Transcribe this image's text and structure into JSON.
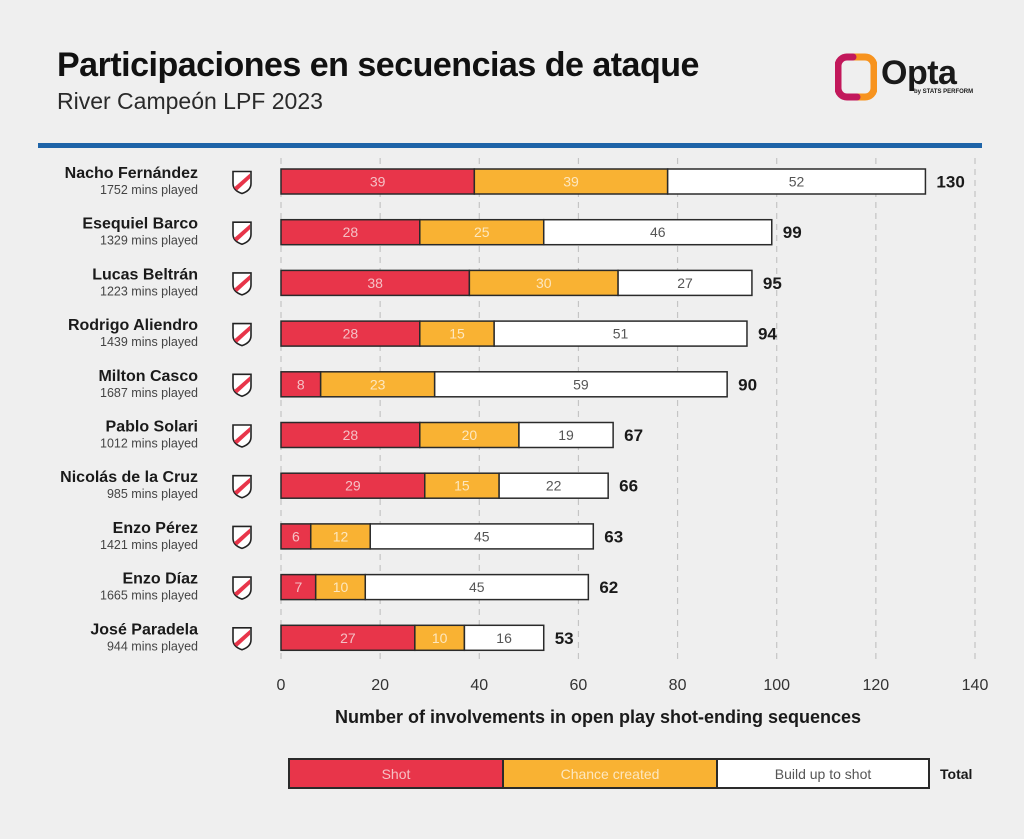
{
  "header": {
    "title": "Participaciones en secuencias de ataque",
    "subtitle": "River Campeón LPF 2023"
  },
  "brand": {
    "name": "Opta",
    "sub": "by STATS PERFORM",
    "logo_orange": "#f7931e",
    "logo_magenta": "#c2185b",
    "rule_color": "#1e64a8"
  },
  "colors": {
    "shot": "#e8354a",
    "chance": "#f9b233",
    "build": "#ffffff",
    "shot_text": "#f5c0c5",
    "chance_text": "#fde7bf",
    "build_text": "#555555"
  },
  "legend": {
    "shot": "Shot",
    "chance": "Chance created",
    "build": "Build up to shot",
    "total": "Total"
  },
  "chart_data": {
    "type": "bar",
    "orientation": "horizontal",
    "stacked": true,
    "xlabel": "Number of involvements in open play shot-ending sequences",
    "xlim": [
      0,
      140
    ],
    "xticks": [
      0,
      20,
      40,
      60,
      80,
      100,
      120,
      140
    ],
    "grid": "vertical dashed",
    "categories": [
      {
        "name": "Nacho Fernández",
        "mins": "1752 mins played"
      },
      {
        "name": "Esequiel Barco",
        "mins": "1329 mins played"
      },
      {
        "name": "Lucas Beltrán",
        "mins": "1223 mins played"
      },
      {
        "name": "Rodrigo Aliendro",
        "mins": "1439 mins played"
      },
      {
        "name": "Milton Casco",
        "mins": "1687 mins played"
      },
      {
        "name": "Pablo Solari",
        "mins": "1012 mins played"
      },
      {
        "name": "Nicolás de la Cruz",
        "mins": "985 mins played"
      },
      {
        "name": "Enzo Pérez",
        "mins": "1421 mins played"
      },
      {
        "name": "Enzo Díaz",
        "mins": "1665 mins played"
      },
      {
        "name": "José Paradela",
        "mins": "944 mins played"
      }
    ],
    "series": [
      {
        "name": "Shot",
        "key": "shot",
        "values": [
          39,
          28,
          38,
          28,
          8,
          28,
          29,
          6,
          7,
          27
        ]
      },
      {
        "name": "Chance created",
        "key": "chance",
        "values": [
          39,
          25,
          30,
          15,
          23,
          20,
          15,
          12,
          10,
          10
        ]
      },
      {
        "name": "Build up to shot",
        "key": "build",
        "values": [
          52,
          46,
          27,
          51,
          59,
          19,
          22,
          45,
          45,
          16
        ]
      }
    ],
    "totals": [
      130,
      99,
      95,
      94,
      90,
      67,
      66,
      63,
      62,
      53
    ]
  }
}
